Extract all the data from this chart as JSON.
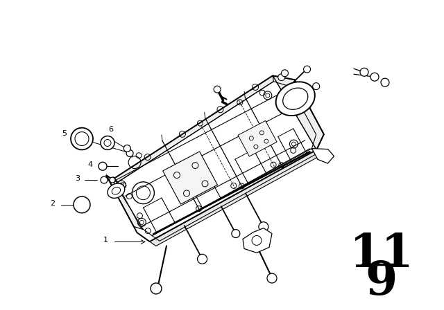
{
  "background_color": "#ffffff",
  "page_number_top": "11",
  "page_number_bottom": "9",
  "line_color": "#000000",
  "lw": 1.0,
  "rotation_deg": 28,
  "fig_width": 6.4,
  "fig_height": 4.48,
  "dpi": 100
}
